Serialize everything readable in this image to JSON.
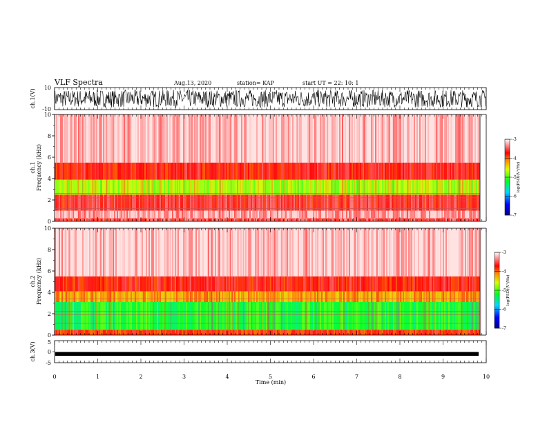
{
  "header": {
    "title": "VLF Spectra",
    "date": "Aug.13, 2020",
    "station": "station= KAP",
    "start": "start  UT =   22: 10: 1"
  },
  "chart_data": [
    {
      "type": "line",
      "panel": "ch1-waveform",
      "ylabel": "ch.1(V)",
      "ylim": [
        -10,
        10
      ],
      "yticks": [
        "10",
        "-10"
      ],
      "xlim": [
        0,
        10
      ],
      "mean_level": 0,
      "amplitude": 8
    },
    {
      "type": "heatmap",
      "panel": "ch1-spectrogram",
      "ylabel": "ch.1\nFrequency (kHz)",
      "ylim": [
        0,
        10
      ],
      "yticks": [
        "0",
        "2",
        "4",
        "6",
        "8",
        "10"
      ],
      "xlim": [
        0,
        10
      ],
      "bands_khz": [
        {
          "from": 0,
          "to": 0.3,
          "level": -3.5
        },
        {
          "from": 0.3,
          "to": 1.0,
          "level": -3.2
        },
        {
          "from": 1.0,
          "to": 2.5,
          "level": -3.6
        },
        {
          "from": 2.5,
          "to": 3.9,
          "level": -4.7
        },
        {
          "from": 3.9,
          "to": 5.5,
          "level": -3.7
        },
        {
          "from": 5.5,
          "to": 10,
          "level": -3.1
        }
      ],
      "lines_khz": [
        1.2,
        1.9,
        2.2,
        2.6
      ],
      "colorbar": {
        "label": "log(PSD)(V²/Hz)",
        "range": [
          -7,
          -3
        ],
        "ticks": [
          "-3",
          "-4",
          "-5",
          "-6",
          "-7"
        ]
      }
    },
    {
      "type": "heatmap",
      "panel": "ch2-spectrogram",
      "ylabel": "ch.2\nFrequency (kHz)",
      "ylim": [
        0,
        10
      ],
      "yticks": [
        "0",
        "2",
        "4",
        "6",
        "8",
        "10"
      ],
      "xlim": [
        0,
        10
      ],
      "bands_khz": [
        {
          "from": 0,
          "to": 0.5,
          "level": -3.8
        },
        {
          "from": 0.5,
          "to": 3.1,
          "level": -5.2
        },
        {
          "from": 3.1,
          "to": 4.1,
          "level": -4.2
        },
        {
          "from": 4.1,
          "to": 5.5,
          "level": -3.7
        },
        {
          "from": 5.5,
          "to": 10,
          "level": -3.1
        }
      ],
      "lines_khz": [
        1.1,
        1.9,
        2.2,
        3.4
      ],
      "colorbar": {
        "label": "log(PSD)(V²/Hz)",
        "range": [
          -7,
          -3
        ],
        "ticks": [
          "-3",
          "-4",
          "-5",
          "-6",
          "-7"
        ]
      }
    },
    {
      "type": "line",
      "panel": "ch3-waveform",
      "ylabel": "ch.3(V)",
      "ylim": [
        -5,
        5
      ],
      "yticks": [
        "5",
        "0",
        "-5"
      ],
      "xlim": [
        0,
        10
      ],
      "mean_level": -1,
      "amplitude": 0.4
    }
  ],
  "xaxis": {
    "label": "Time (min)",
    "ticks": [
      "0",
      "1",
      "2",
      "3",
      "4",
      "5",
      "6",
      "7",
      "8",
      "9",
      "10"
    ]
  },
  "colors": {
    "frame": "#000000",
    "trace": "#000000"
  }
}
